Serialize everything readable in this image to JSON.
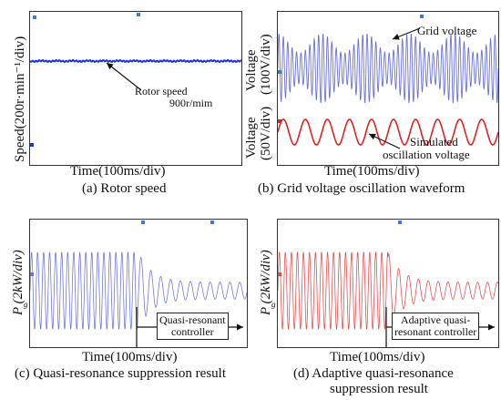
{
  "chart_data": [
    {
      "type": "line",
      "panel": "a",
      "caption": "(a) Rotor speed",
      "xlabel": "Time(100ms/div)",
      "ylabel": "Speed(200r·min⁻¹/div)",
      "series": [
        {
          "name": "Rotor speed",
          "color": "#2233cc",
          "values_note": "constant",
          "value": 900
        }
      ],
      "annotations": [
        "Rotor speed",
        "900r/mim"
      ]
    },
    {
      "type": "line",
      "panel": "b",
      "caption": "(b) Grid voltage oscillation waveform",
      "xlabel": "Time(100ms/div)",
      "ylabels": [
        "Voltage",
        "(100V/div)",
        "Voltage",
        "(50V/div)"
      ],
      "series": [
        {
          "name": "Grid voltage",
          "color": "#6a72d8",
          "cycles": 50,
          "beat_cycles": 5
        },
        {
          "name": "Simulated oscillation voltage",
          "color": "#dd2222",
          "cycles": 10
        }
      ],
      "annotations": [
        "Grid voltage",
        "Simulated",
        "oscillation voltage"
      ]
    },
    {
      "type": "line",
      "panel": "c",
      "caption": "(c) Quasi-resonance suppression result",
      "xlabel": "Time(100ms/div)",
      "ylabel": "P (2kW/div)",
      "ylabel_sub": "g",
      "series": [
        {
          "name": "P_g",
          "color": "#6a72d8",
          "amplitude_before": 1.0,
          "amplitude_after": 0.22
        }
      ],
      "annotations": [
        "Quasi-resonant",
        "controller"
      ]
    },
    {
      "type": "line",
      "panel": "d",
      "caption_lines": [
        "(d) Adaptive quasi-resonance",
        "suppression result"
      ],
      "xlabel": "Time(100ms/div)",
      "ylabel": "P (2kW/div)",
      "ylabel_sub": "g",
      "series": [
        {
          "name": "P_g",
          "color": "#e04a4a",
          "amplitude_before": 1.0,
          "amplitude_after": 0.22
        }
      ],
      "annotations": [
        "Adaptive quasi-",
        "resonant controller"
      ]
    }
  ]
}
